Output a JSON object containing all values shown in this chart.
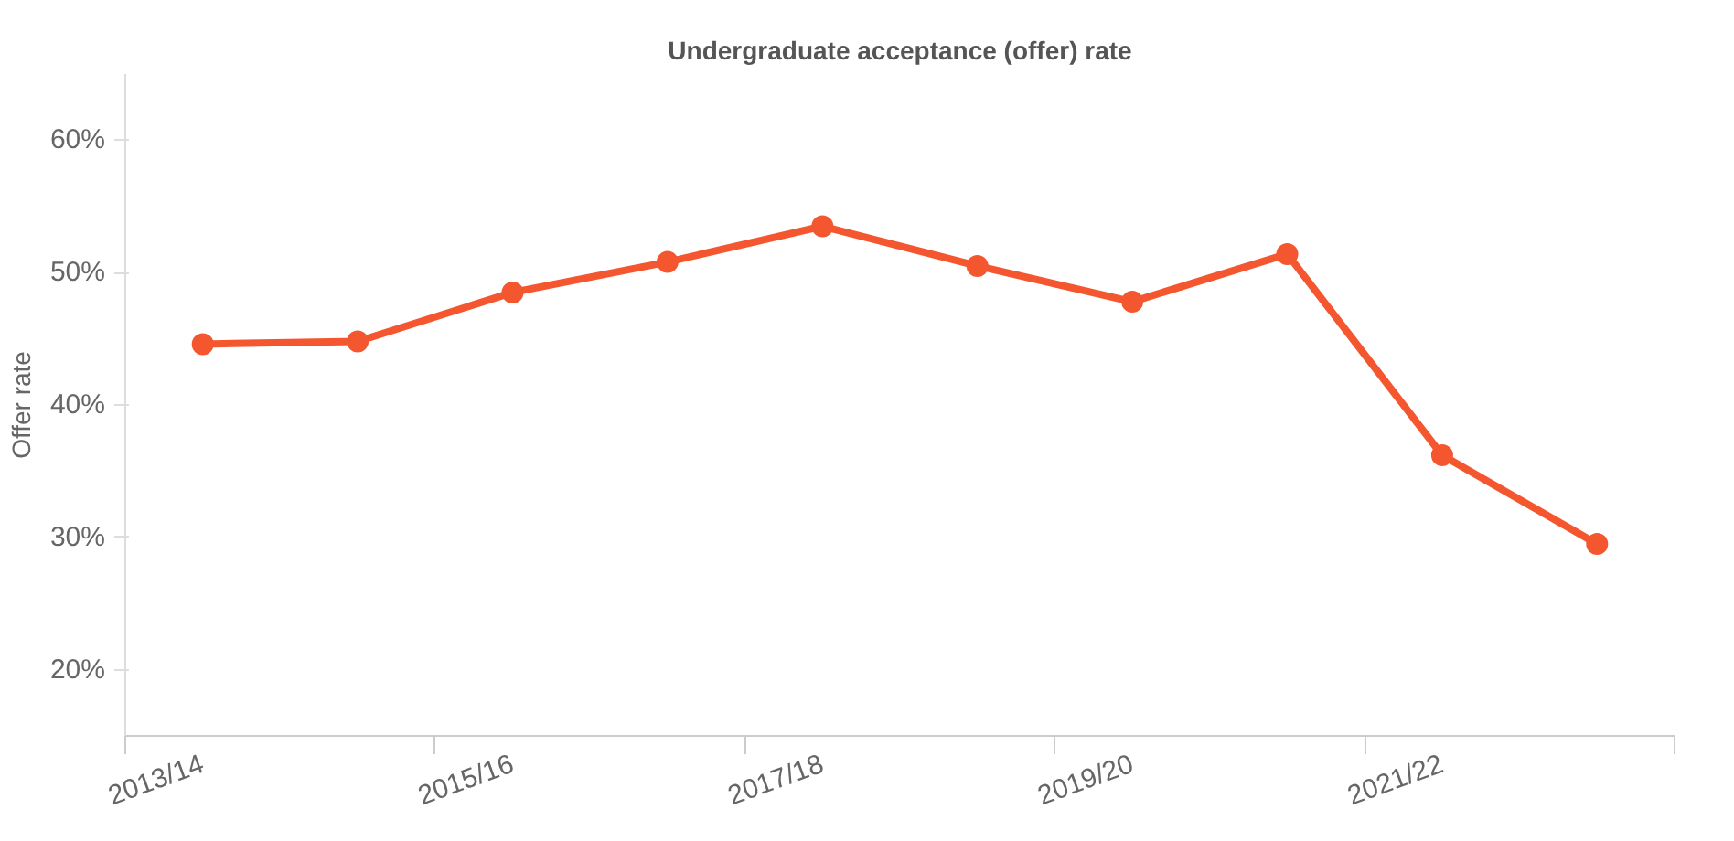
{
  "chart_data": {
    "type": "line",
    "title": "Undergraduate acceptance (offer) rate",
    "ylabel": "Offer rate",
    "categories": [
      "2013/14",
      null,
      "2015/16",
      null,
      "2017/18",
      null,
      "2019/20",
      null,
      "2021/22",
      null
    ],
    "series": [
      {
        "color": "#f4572f",
        "values": [
          44.6,
          44.8,
          48.5,
          50.8,
          53.5,
          50.5,
          47.8,
          51.4,
          36.2,
          29.5
        ]
      }
    ],
    "ylim": [
      15,
      65
    ],
    "yticks": [
      {
        "value": 20,
        "label": "20%"
      },
      {
        "value": 30,
        "label": "30%"
      },
      {
        "value": 40,
        "label": "40%"
      },
      {
        "value": 50,
        "label": "50%"
      },
      {
        "value": 60,
        "label": "60%"
      }
    ],
    "grid": false,
    "marker": "circle",
    "line_style": "solid"
  }
}
